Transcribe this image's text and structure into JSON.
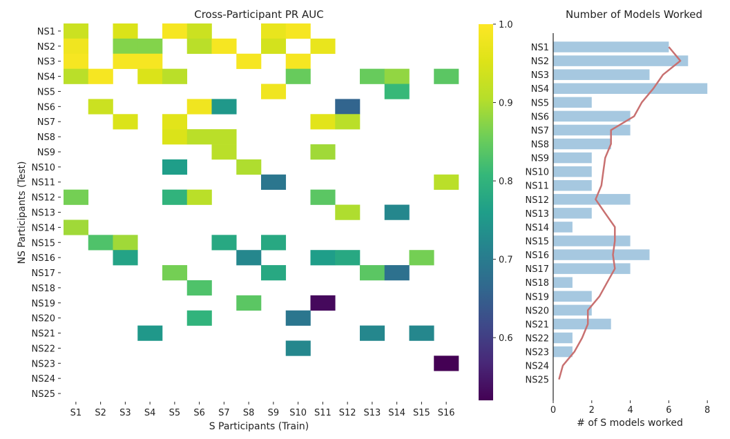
{
  "chart_data": [
    {
      "type": "heatmap",
      "title": "Cross-Participant PR AUC",
      "xlabel": "S Participants (Train)",
      "ylabel": "NS Participants (Test)",
      "x_categories": [
        "S1",
        "S2",
        "S3",
        "S4",
        "S5",
        "S6",
        "S7",
        "S8",
        "S9",
        "S10",
        "S11",
        "S12",
        "S13",
        "S14",
        "S15",
        "S16"
      ],
      "y_categories": [
        "NS1",
        "NS2",
        "NS3",
        "NS4",
        "NS5",
        "NS6",
        "NS7",
        "NS8",
        "NS9",
        "NS10",
        "NS11",
        "NS12",
        "NS13",
        "NS14",
        "NS15",
        "NS16",
        "NS17",
        "NS18",
        "NS19",
        "NS20",
        "NS21",
        "NS22",
        "NS23",
        "NS24",
        "NS25"
      ],
      "colorbar": {
        "colormap": "viridis",
        "vmin": 0.52,
        "vmax": 1.0,
        "ticks": [
          "0.6",
          "0.7",
          "0.8",
          "0.9",
          "1.0"
        ],
        "tick_values": [
          0.6,
          0.7,
          0.8,
          0.9,
          1.0
        ]
      },
      "cells": [
        {
          "row": 0,
          "col": 0,
          "value": 0.93
        },
        {
          "row": 0,
          "col": 2,
          "value": 0.95
        },
        {
          "row": 0,
          "col": 4,
          "value": 0.99
        },
        {
          "row": 0,
          "col": 5,
          "value": 0.93
        },
        {
          "row": 0,
          "col": 8,
          "value": 0.97
        },
        {
          "row": 0,
          "col": 9,
          "value": 0.99
        },
        {
          "row": 1,
          "col": 0,
          "value": 0.98
        },
        {
          "row": 1,
          "col": 2,
          "value": 0.87
        },
        {
          "row": 1,
          "col": 3,
          "value": 0.87
        },
        {
          "row": 1,
          "col": 5,
          "value": 0.91
        },
        {
          "row": 1,
          "col": 6,
          "value": 0.99
        },
        {
          "row": 1,
          "col": 8,
          "value": 0.94
        },
        {
          "row": 1,
          "col": 10,
          "value": 0.97
        },
        {
          "row": 2,
          "col": 0,
          "value": 0.99
        },
        {
          "row": 2,
          "col": 2,
          "value": 0.99
        },
        {
          "row": 2,
          "col": 3,
          "value": 0.99
        },
        {
          "row": 2,
          "col": 7,
          "value": 0.99
        },
        {
          "row": 2,
          "col": 9,
          "value": 0.99
        },
        {
          "row": 3,
          "col": 0,
          "value": 0.91
        },
        {
          "row": 3,
          "col": 1,
          "value": 0.99
        },
        {
          "row": 3,
          "col": 3,
          "value": 0.95
        },
        {
          "row": 3,
          "col": 4,
          "value": 0.91
        },
        {
          "row": 3,
          "col": 9,
          "value": 0.85
        },
        {
          "row": 3,
          "col": 12,
          "value": 0.85
        },
        {
          "row": 3,
          "col": 13,
          "value": 0.88
        },
        {
          "row": 3,
          "col": 15,
          "value": 0.84
        },
        {
          "row": 4,
          "col": 8,
          "value": 0.98
        },
        {
          "row": 4,
          "col": 13,
          "value": 0.81
        },
        {
          "row": 5,
          "col": 1,
          "value": 0.93
        },
        {
          "row": 5,
          "col": 5,
          "value": 0.98
        },
        {
          "row": 5,
          "col": 6,
          "value": 0.75
        },
        {
          "row": 5,
          "col": 11,
          "value": 0.66
        },
        {
          "row": 6,
          "col": 2,
          "value": 0.95
        },
        {
          "row": 6,
          "col": 4,
          "value": 0.96
        },
        {
          "row": 6,
          "col": 10,
          "value": 0.96
        },
        {
          "row": 6,
          "col": 11,
          "value": 0.91
        },
        {
          "row": 7,
          "col": 4,
          "value": 0.95
        },
        {
          "row": 7,
          "col": 5,
          "value": 0.91
        },
        {
          "row": 7,
          "col": 6,
          "value": 0.91
        },
        {
          "row": 8,
          "col": 6,
          "value": 0.91
        },
        {
          "row": 8,
          "col": 10,
          "value": 0.89
        },
        {
          "row": 9,
          "col": 4,
          "value": 0.76
        },
        {
          "row": 9,
          "col": 7,
          "value": 0.9
        },
        {
          "row": 10,
          "col": 8,
          "value": 0.69
        },
        {
          "row": 10,
          "col": 15,
          "value": 0.91
        },
        {
          "row": 11,
          "col": 0,
          "value": 0.86
        },
        {
          "row": 11,
          "col": 4,
          "value": 0.8
        },
        {
          "row": 11,
          "col": 5,
          "value": 0.91
        },
        {
          "row": 11,
          "col": 10,
          "value": 0.84
        },
        {
          "row": 12,
          "col": 11,
          "value": 0.9
        },
        {
          "row": 12,
          "col": 13,
          "value": 0.72
        },
        {
          "row": 13,
          "col": 0,
          "value": 0.89
        },
        {
          "row": 14,
          "col": 1,
          "value": 0.83
        },
        {
          "row": 14,
          "col": 2,
          "value": 0.89
        },
        {
          "row": 14,
          "col": 6,
          "value": 0.78
        },
        {
          "row": 14,
          "col": 8,
          "value": 0.78
        },
        {
          "row": 15,
          "col": 2,
          "value": 0.77
        },
        {
          "row": 15,
          "col": 7,
          "value": 0.72
        },
        {
          "row": 15,
          "col": 10,
          "value": 0.76
        },
        {
          "row": 15,
          "col": 11,
          "value": 0.78
        },
        {
          "row": 15,
          "col": 14,
          "value": 0.86
        },
        {
          "row": 16,
          "col": 4,
          "value": 0.86
        },
        {
          "row": 16,
          "col": 8,
          "value": 0.78
        },
        {
          "row": 16,
          "col": 12,
          "value": 0.84
        },
        {
          "row": 16,
          "col": 13,
          "value": 0.68
        },
        {
          "row": 17,
          "col": 5,
          "value": 0.83
        },
        {
          "row": 18,
          "col": 7,
          "value": 0.84
        },
        {
          "row": 18,
          "col": 10,
          "value": 0.53
        },
        {
          "row": 19,
          "col": 5,
          "value": 0.8
        },
        {
          "row": 19,
          "col": 9,
          "value": 0.69
        },
        {
          "row": 20,
          "col": 3,
          "value": 0.75
        },
        {
          "row": 20,
          "col": 12,
          "value": 0.72
        },
        {
          "row": 20,
          "col": 14,
          "value": 0.72
        },
        {
          "row": 21,
          "col": 9,
          "value": 0.72
        },
        {
          "row": 22,
          "col": 15,
          "value": 0.52
        }
      ]
    },
    {
      "type": "bar",
      "orientation": "horizontal",
      "title": "Number of Models Worked",
      "xlabel": "# of S models worked",
      "xlim": [
        0,
        8
      ],
      "x_ticks": [
        "0",
        "2",
        "4",
        "6",
        "8"
      ],
      "x_tick_values": [
        0,
        2,
        4,
        6,
        8
      ],
      "categories": [
        "NS1",
        "NS2",
        "NS3",
        "NS4",
        "NS5",
        "NS6",
        "NS7",
        "NS8",
        "NS9",
        "NS10",
        "NS11",
        "NS12",
        "NS13",
        "NS14",
        "NS15",
        "NS16",
        "NS17",
        "NS18",
        "NS19",
        "NS20",
        "NS21",
        "NS22",
        "NS23",
        "NS24",
        "NS25"
      ],
      "values": [
        6,
        7,
        5,
        8,
        2,
        4,
        4,
        3,
        2,
        2,
        2,
        4,
        2,
        1,
        4,
        5,
        4,
        1,
        2,
        2,
        3,
        1,
        1,
        0,
        0
      ],
      "series": [
        {
          "name": "count",
          "values": [
            6,
            7,
            5,
            8,
            2,
            4,
            4,
            3,
            2,
            2,
            2,
            4,
            2,
            1,
            4,
            5,
            4,
            1,
            2,
            2,
            3,
            1,
            1,
            0,
            0
          ],
          "color": "#a6c8e0"
        },
        {
          "name": "smoothed trend",
          "type": "line",
          "color": "#c87070",
          "values": [
            6.0,
            6.6,
            5.7,
            5.2,
            4.6,
            4.2,
            3.0,
            3.0,
            2.7,
            2.6,
            2.5,
            2.2,
            2.7,
            3.2,
            3.2,
            3.1,
            3.2,
            2.8,
            2.4,
            1.8,
            1.8,
            1.5,
            1.1,
            0.5,
            0.3
          ]
        }
      ]
    }
  ]
}
